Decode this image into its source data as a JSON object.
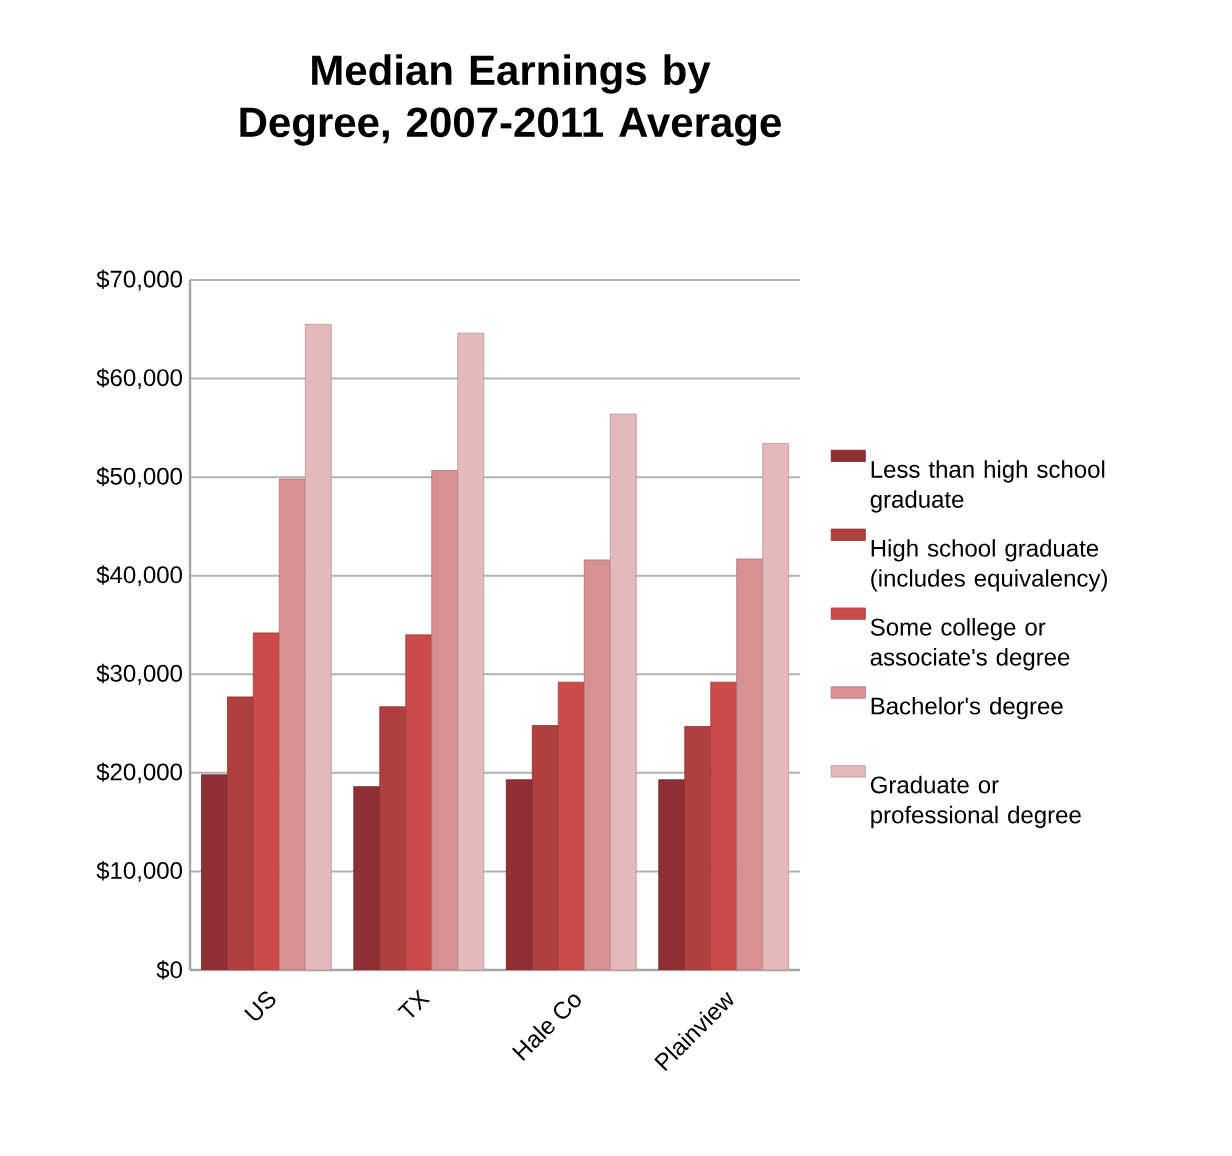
{
  "chart_data": {
    "type": "bar",
    "title": "Median Earnings by Degree, 2007-2011 Average",
    "categories": [
      "US",
      "TX",
      "Hale Co",
      "Plainview"
    ],
    "series": [
      {
        "name": "Less than high school graduate",
        "color": "#8e3033",
        "values": [
          19800,
          18600,
          19300,
          19300
        ]
      },
      {
        "name": "High school graduate (includes equivalency)",
        "color": "#b0403f",
        "values": [
          27700,
          26700,
          24800,
          24700
        ]
      },
      {
        "name": "Some college or associate's degree",
        "color": "#c94b4a",
        "values": [
          34200,
          34000,
          29200,
          29200
        ]
      },
      {
        "name": "Bachelor's degree",
        "color": "#d79192",
        "values": [
          49800,
          50700,
          41600,
          41700
        ]
      },
      {
        "name": "Graduate or professional degree",
        "color": "#e3b9bb",
        "values": [
          65500,
          64600,
          56400,
          53400
        ]
      }
    ],
    "ylim": [
      0,
      70000
    ],
    "yticks": [
      {
        "value": 0,
        "label": "$0"
      },
      {
        "value": 10000,
        "label": "$10,000"
      },
      {
        "value": 20000,
        "label": "$20,000"
      },
      {
        "value": 30000,
        "label": "$30,000"
      },
      {
        "value": 40000,
        "label": "$40,000"
      },
      {
        "value": 50000,
        "label": "$50,000"
      },
      {
        "value": 60000,
        "label": "$60,000"
      },
      {
        "value": 70000,
        "label": "$70,000"
      }
    ],
    "grid": "y",
    "legend": "right"
  }
}
